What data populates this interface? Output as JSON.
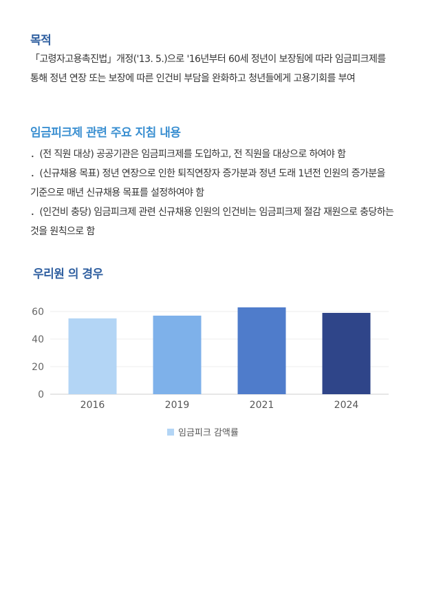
{
  "sections": {
    "purpose": {
      "title": "목적",
      "body": "「고령자고용촉진법」개정('13. 5.)으로 '16년부터 60세 정년이 보장됨에 따라 임금피크제를 통해 정년 연장 또는 보장에 따른 인건비 부담을 완화하고 청년들에게 고용기회를 부여"
    },
    "guidelines": {
      "title": "임금피크제 관련 주요 지침 내용",
      "items": [
        "．(전 직원 대상) 공공기관은 임금피크제를 도입하고, 전 직원을 대상으로 하여야 함",
        "．(신규채용 목표) 정년 연장으로 인한 퇴직연장자 증가분과 정년 도래 1년전 인원의 증가분을 기준으로 매년 신규채용 목표를 설정하여야 함",
        "．(인건비 충당) 임금피크제 관련 신규채용 인원의 인건비는 임금피크제 절감 재원으로 충당하는 것을 원칙으로 함"
      ]
    },
    "our_case": {
      "title": "우리원 의 경우"
    }
  },
  "chart_data": {
    "type": "bar",
    "categories": [
      "2016",
      "2019",
      "2021",
      "2024"
    ],
    "series": [
      {
        "name": "임금피크 감액률",
        "values": [
          55,
          57,
          63,
          59
        ]
      }
    ],
    "bar_colors": [
      "#b3d5f5",
      "#7eb1ea",
      "#4f7ccb",
      "#2f4589"
    ],
    "ylim": [
      0,
      70
    ],
    "yticks": [
      "0",
      "20",
      "40",
      "60"
    ],
    "ytick_values": [
      0,
      20,
      40,
      60
    ],
    "legend_position": "bottom-center",
    "legend_color": "#b3d5f5",
    "grid": true
  }
}
